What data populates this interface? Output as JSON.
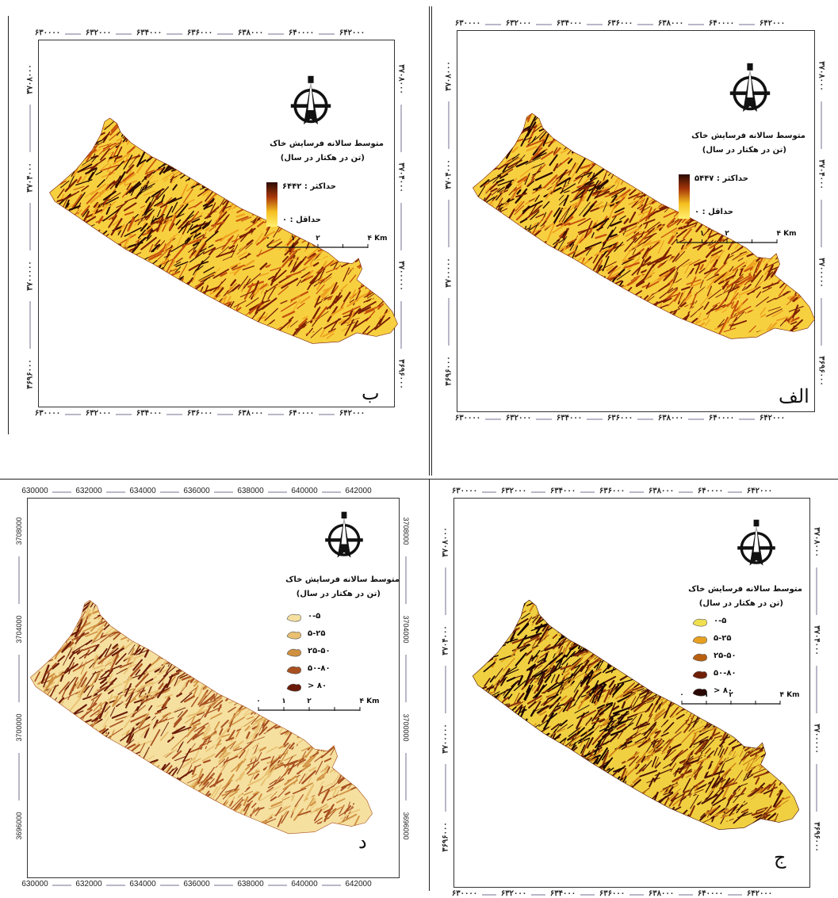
{
  "panels": {
    "b": {
      "letter": "ب",
      "x_ticks": [
        "۶۳۰۰۰۰",
        "۶۳۲۰۰۰",
        "۶۳۴۰۰۰",
        "۶۳۶۰۰۰",
        "۶۳۸۰۰۰",
        "۶۴۰۰۰۰",
        "۶۴۲۰۰۰"
      ],
      "y_ticks": [
        "۳۷۰۸۰۰۰",
        "۳۷۰۴۰۰۰",
        "۳۷۰۰۰۰۰",
        "۳۶۹۶۰۰۰"
      ],
      "legend_title_1": "متوسط سالانه فرسایش خاک",
      "legend_title_2": "(تن در هکتار در سال)",
      "max_label": "حداکثر : ۶۴۴۲",
      "min_label": "حداقل : ۰",
      "scale_labels": [
        "۰",
        "۱",
        "۲",
        "۴ Km"
      ],
      "gradient": [
        "#2a0a02",
        "#a8380a",
        "#f5c020",
        "#fff070"
      ]
    },
    "alef": {
      "letter": "الف",
      "x_ticks": [
        "۶۳۰۰۰۰",
        "۶۳۲۰۰۰",
        "۶۳۴۰۰۰",
        "۶۳۶۰۰۰",
        "۶۳۸۰۰۰",
        "۶۴۰۰۰۰",
        "۶۴۲۰۰۰"
      ],
      "y_ticks": [
        "۳۷۰۸۰۰۰",
        "۳۷۰۴۰۰۰",
        "۳۷۰۰۰۰۰",
        "۳۶۹۶۰۰۰"
      ],
      "legend_title_1": "متوسط سالانه فرسایش خاک",
      "legend_title_2": "(تن در هکتار در سال)",
      "max_label": "حداکثر : ۵۴۴۷",
      "min_label": "حداقل : ۰",
      "scale_labels": [
        "۰",
        "۱",
        "۲",
        "۴ Km"
      ],
      "gradient": [
        "#2a0a02",
        "#a8380a",
        "#f5c020",
        "#fff070"
      ]
    },
    "d": {
      "letter": "د",
      "x_ticks": [
        "630000",
        "632000",
        "634000",
        "636000",
        "638000",
        "640000",
        "642000"
      ],
      "y_ticks": [
        "3708000",
        "3704000",
        "3700000",
        "3696000"
      ],
      "legend_title_1": "متوسط سالانه فرسایش خاک",
      "legend_title_2": "(تن در هکتار در سال)",
      "classes": [
        "۰-۵",
        "۵-۲۵",
        "۲۵-۵۰",
        "۵۰-۸۰",
        "> ۸۰"
      ],
      "class_colors": [
        "#f5e0a0",
        "#e8c070",
        "#d09040",
        "#a85020",
        "#6a1a08"
      ],
      "scale_labels": [
        "۰",
        "۱",
        "۲",
        "۴ Km"
      ]
    },
    "jim": {
      "letter": "ج",
      "x_ticks": [
        "۶۳۰۰۰۰",
        "۶۳۲۰۰۰",
        "۶۳۴۰۰۰",
        "۶۳۶۰۰۰",
        "۶۳۸۰۰۰",
        "۶۴۰۰۰۰",
        "۶۴۲۰۰۰"
      ],
      "y_ticks": [
        "۳۷۰۸۰۰۰",
        "۳۷۰۴۰۰۰",
        "۳۷۰۰۰۰۰",
        "۳۶۹۶۰۰۰"
      ],
      "legend_title_1": "متوسط سالانه فرسایش خاک",
      "legend_title_2": "(تن در هکتار در سال)",
      "classes": [
        "۰-۵",
        "۵-۲۵",
        "۲۵-۵۰",
        "۵۰-۸۰",
        "> ۸۰"
      ],
      "class_colors": [
        "#f0e050",
        "#e8a020",
        "#b86010",
        "#702008",
        "#2a0804"
      ],
      "scale_labels": [
        "۰",
        "۱",
        "۲",
        "۴ Km"
      ]
    }
  }
}
